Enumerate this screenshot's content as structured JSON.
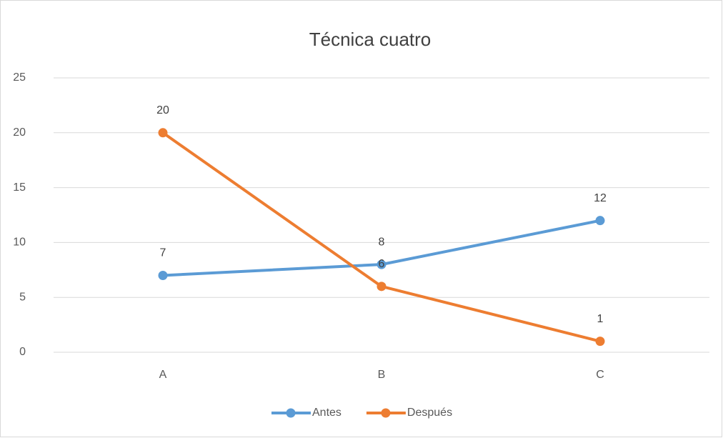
{
  "chart_data": {
    "type": "line",
    "title": "Técnica cuatro",
    "categories": [
      "A",
      "B",
      "C"
    ],
    "series": [
      {
        "name": "Antes",
        "color": "#5b9bd5",
        "values": [
          7,
          8,
          12
        ]
      },
      {
        "name": "Después",
        "color": "#ed7d31",
        "values": [
          20,
          6,
          1
        ]
      }
    ],
    "ylim": [
      0,
      25
    ],
    "yticks": [
      0,
      5,
      10,
      15,
      20,
      25
    ],
    "grid": true,
    "legend": "bottom"
  }
}
